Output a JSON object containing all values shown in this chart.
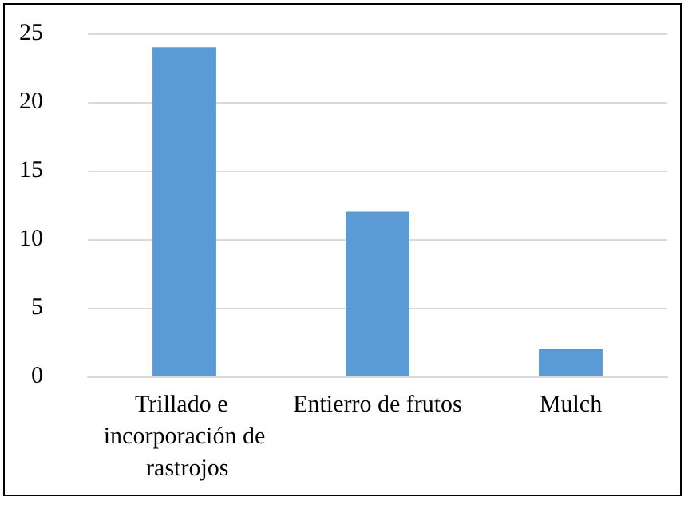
{
  "chart_data": {
    "type": "bar",
    "categories": [
      "Trillado e incorporación de rastrojos",
      "Entierro de frutos",
      "Mulch"
    ],
    "values": [
      24,
      12,
      2
    ],
    "color": "#5b9bd5",
    "ylim": [
      0,
      25
    ],
    "yticks": [
      0,
      5,
      10,
      15,
      20,
      25
    ],
    "grid": "y"
  }
}
